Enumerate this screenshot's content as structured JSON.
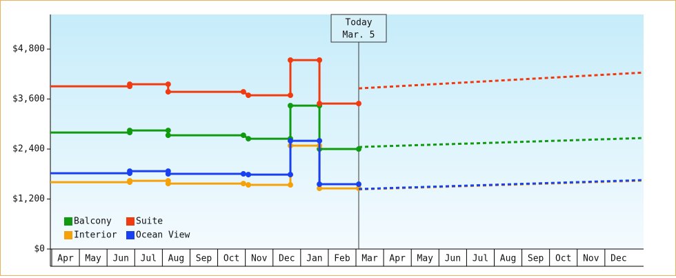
{
  "chart_data": {
    "type": "step-line",
    "categories": [
      "Apr",
      "May",
      "Jun",
      "Jul",
      "Aug",
      "Sep",
      "Oct",
      "Nov",
      "Dec",
      "Jan",
      "Feb",
      "Mar",
      "Apr",
      "May",
      "Jun",
      "Jul",
      "Aug",
      "Sep",
      "Oct",
      "Nov",
      "Dec"
    ],
    "xlim": [
      -0.05,
      21.4
    ],
    "ylim": [
      0,
      5630
    ],
    "yticks": [
      {
        "value": 0,
        "label": "$0"
      },
      {
        "value": 1200,
        "label": "$1,200"
      },
      {
        "value": 2400,
        "label": "$2,400"
      },
      {
        "value": 3600,
        "label": "$3,600"
      },
      {
        "value": 4800,
        "label": "$4,800"
      }
    ],
    "today": {
      "label": "Today",
      "date": "Mar. 5",
      "x": 11.1
    },
    "legend": "lower left",
    "series": [
      {
        "name": "Balcony",
        "color": "#109a10",
        "x": [
          -0.05,
          2.82,
          2.82,
          4.21,
          4.21,
          6.93,
          7.11,
          8.63,
          8.63,
          9.68,
          9.68,
          11.1
        ],
        "values": [
          2797,
          2797,
          2847,
          2847,
          2731,
          2731,
          2648,
          2648,
          3442,
          3442,
          2400,
          2400
        ],
        "forecast_x": [
          11.1,
          21.4
        ],
        "forecast_values": [
          2449,
          2665
        ]
      },
      {
        "name": "Suite",
        "color": "#f03a10",
        "x": [
          -0.05,
          2.82,
          2.82,
          4.21,
          4.21,
          6.93,
          7.11,
          8.63,
          8.63,
          9.68,
          9.68,
          11.1
        ],
        "values": [
          3906,
          3906,
          3956,
          3956,
          3774,
          3774,
          3691,
          3691,
          4535,
          4535,
          3492,
          3492
        ],
        "forecast_x": [
          11.1,
          21.4
        ],
        "forecast_values": [
          3856,
          4237
        ]
      },
      {
        "name": "Interior",
        "color": "#f5a20a",
        "x": [
          -0.05,
          2.82,
          2.82,
          4.21,
          4.21,
          6.93,
          7.11,
          8.63,
          8.63,
          9.68,
          9.68,
          11.1
        ],
        "values": [
          1605,
          1605,
          1638,
          1638,
          1572,
          1572,
          1539,
          1539,
          2482,
          2482,
          1456,
          1456
        ],
        "forecast_x": [
          11.1,
          21.4
        ],
        "forecast_values": [
          1430,
          1640
        ]
      },
      {
        "name": "Ocean View",
        "color": "#1840f0",
        "x": [
          -0.05,
          2.82,
          2.82,
          4.21,
          4.21,
          6.93,
          7.11,
          8.63,
          8.63,
          9.68,
          9.68,
          11.1
        ],
        "values": [
          1820,
          1820,
          1870,
          1870,
          1804,
          1804,
          1787,
          1787,
          2598,
          2598,
          1556,
          1556
        ],
        "forecast_x": [
          11.1,
          21.4
        ],
        "forecast_values": [
          1440,
          1655
        ]
      }
    ]
  }
}
